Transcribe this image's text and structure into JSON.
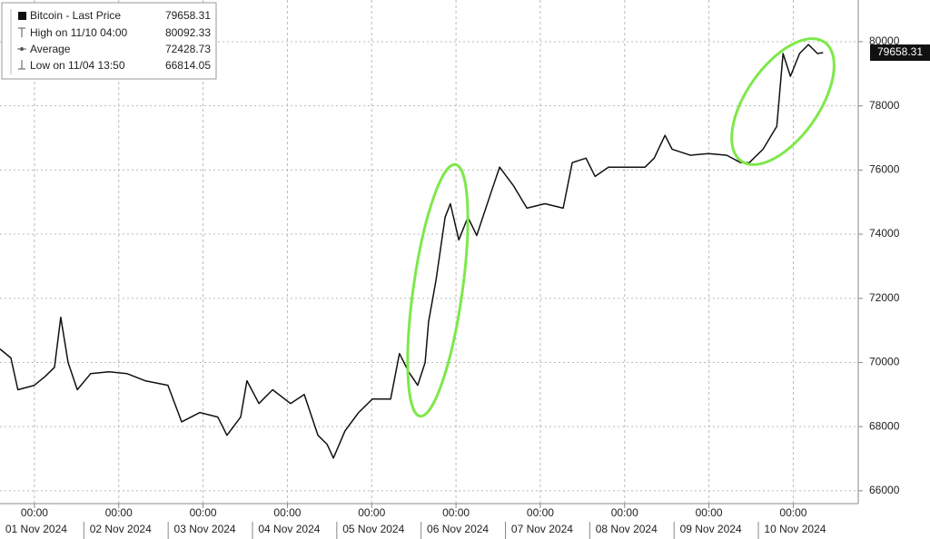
{
  "chart_data": {
    "type": "line",
    "legend": [
      {
        "label": "Bitcoin - Last Price",
        "value": 79658.31
      },
      {
        "label": "High on 11/10 04:00",
        "value": 80092.33
      },
      {
        "label": "Average",
        "value": 72428.73
      },
      {
        "label": "Low on 11/04 13:50",
        "value": 66814.05
      }
    ],
    "x": [
      -9.8,
      -6.7,
      -4.7,
      0,
      3.1,
      5.7,
      7.5,
      9.6,
      12.2,
      16.0,
      21.2,
      26.4,
      31.5,
      38.0,
      41.9,
      47.1,
      52.2,
      54.8,
      58.7,
      60.5,
      63.9,
      67.8,
      72.9,
      76.8,
      80.7,
      83.3,
      85.1,
      88.4,
      92.3,
      96.2,
      101.4,
      103.9,
      106.5,
      109.1,
      111.2,
      112.2,
      114.3,
      116.9,
      118.4,
      120.8,
      123.4,
      125.9,
      129.8,
      132.4,
      136.3,
      140.2,
      145.3,
      150.5,
      153.1,
      157.0,
      159.6,
      163.4,
      168.6,
      173.8,
      176.4,
      179.5,
      181.5,
      186.7,
      191.9,
      197.1,
      201.0,
      203.5,
      207.4,
      211.3,
      213.1,
      215.2,
      217.8,
      220.3,
      222.9,
      224.5
    ],
    "series": [
      {
        "name": "Bitcoin - Last Price",
        "color": "#111111",
        "values": [
          70420,
          70140,
          69150,
          69290,
          69570,
          69850,
          71410,
          70000,
          69150,
          69650,
          69710,
          69650,
          69430,
          69290,
          68150,
          68440,
          68300,
          67730,
          68300,
          69430,
          68720,
          69150,
          68720,
          69000,
          67730,
          67450,
          67020,
          67870,
          68440,
          68860,
          68860,
          70280,
          69710,
          69290,
          70000,
          71270,
          72550,
          74530,
          74950,
          73820,
          74530,
          73960,
          75240,
          76090,
          75520,
          74810,
          74950,
          74810,
          76230,
          76370,
          75800,
          76090,
          76090,
          76090,
          76370,
          77080,
          76650,
          76460,
          76510,
          76460,
          76230,
          76230,
          76650,
          77360,
          79630,
          78920,
          79630,
          79910,
          79630,
          79660
        ]
      }
    ],
    "xlim": [
      -9.8,
      234.5
    ],
    "xticks": [
      {
        "value": 0,
        "label": "00:00"
      },
      {
        "value": 24,
        "label": "00:00"
      },
      {
        "value": 48,
        "label": "00:00"
      },
      {
        "value": 72,
        "label": "00:00"
      },
      {
        "value": 96,
        "label": "00:00"
      },
      {
        "value": 120,
        "label": "00:00"
      },
      {
        "value": 144,
        "label": "00:00"
      },
      {
        "value": 168,
        "label": "00:00"
      },
      {
        "value": 192,
        "label": "00:00"
      },
      {
        "value": 216,
        "label": "00:00"
      }
    ],
    "xtick_dates": [
      "01 Nov 2024",
      "02 Nov 2024",
      "03 Nov 2024",
      "04 Nov 2024",
      "05 Nov 2024",
      "06 Nov 2024",
      "07 Nov 2024",
      "08 Nov 2024",
      "09 Nov 2024",
      "10 Nov 2024"
    ],
    "ylim": [
      65600,
      81300
    ],
    "yticks": [
      66000,
      68000,
      70000,
      72000,
      74000,
      76000,
      78000,
      80000
    ],
    "grid": true
  }
}
